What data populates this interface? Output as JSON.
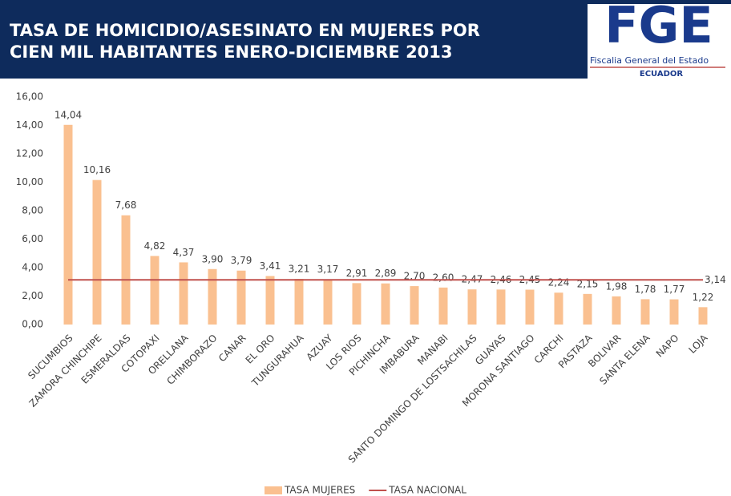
{
  "header": {
    "title_lines": [
      "TASA DE HOMICIDIO/ASESINATO EN MUJERES POR",
      "CIEN MIL HABITANTES ENERO-DICIEMBRE 2013"
    ],
    "logo": {
      "letters": "FGE",
      "name": "Fiscalia General del Estado",
      "country": "ECUADOR"
    }
  },
  "chart_data": {
    "type": "bar",
    "categories": [
      "SUCUMBIOS",
      "ZAMORA CHINCHIPE",
      "ESMERALDAS",
      "COTOPAXI",
      "ORELLANA",
      "CHIMBORAZO",
      "CANAR",
      "EL ORO",
      "TUNGURAHUA",
      "AZUAY",
      "LOS RIOS",
      "PICHINCHA",
      "IMBABURA",
      "MANABI",
      "SANTO DOMINGO DE LOSTSACHILAS",
      "GUAYAS",
      "MORONA SANTIAGO",
      "CARCHI",
      "PASTAZA",
      "BOLIVAR",
      "SANTA ELENA",
      "NAPO",
      "LOJA"
    ],
    "series": [
      {
        "name": "TASA MUJERES",
        "type": "bar",
        "color": "#fac090",
        "values": [
          14.04,
          10.16,
          7.68,
          4.82,
          4.37,
          3.9,
          3.79,
          3.41,
          3.21,
          3.17,
          2.91,
          2.89,
          2.7,
          2.6,
          2.47,
          2.46,
          2.45,
          2.24,
          2.15,
          1.98,
          1.78,
          1.77,
          1.22
        ],
        "value_labels": [
          "14,04",
          "10,16",
          "7,68",
          "4,82",
          "4,37",
          "3,90",
          "3,79",
          "3,41",
          "3,21",
          "3,17",
          "2,91",
          "2,89",
          "2,70",
          "2,60",
          "2,47",
          "2,46",
          "2,45",
          "2,24",
          "2,15",
          "1,98",
          "1,78",
          "1,77",
          "1,22"
        ]
      },
      {
        "name": "TASA NACIONAL",
        "type": "line",
        "color": "#c0504d",
        "values": [
          3.14,
          3.14,
          3.14,
          3.14,
          3.14,
          3.14,
          3.14,
          3.14,
          3.14,
          3.14,
          3.14,
          3.14,
          3.14,
          3.14,
          3.14,
          3.14,
          3.14,
          3.14,
          3.14,
          3.14,
          3.14,
          3.14,
          3.14
        ],
        "value_labels": [
          null,
          null,
          null,
          null,
          null,
          null,
          null,
          null,
          null,
          null,
          null,
          null,
          null,
          null,
          null,
          null,
          null,
          null,
          null,
          null,
          null,
          null,
          "3,14"
        ]
      }
    ],
    "ylim": [
      0,
      16
    ],
    "yticks": [
      {
        "value": 0,
        "label": "0,00"
      },
      {
        "value": 2,
        "label": "2,00"
      },
      {
        "value": 4,
        "label": "4,00"
      },
      {
        "value": 6,
        "label": "6,00"
      },
      {
        "value": 8,
        "label": "8,00"
      },
      {
        "value": 10,
        "label": "10,00"
      },
      {
        "value": 12,
        "label": "12,00"
      },
      {
        "value": 14,
        "label": "14,00"
      },
      {
        "value": 16,
        "label": "16,00"
      }
    ],
    "grid": false,
    "legend": "bottom"
  }
}
